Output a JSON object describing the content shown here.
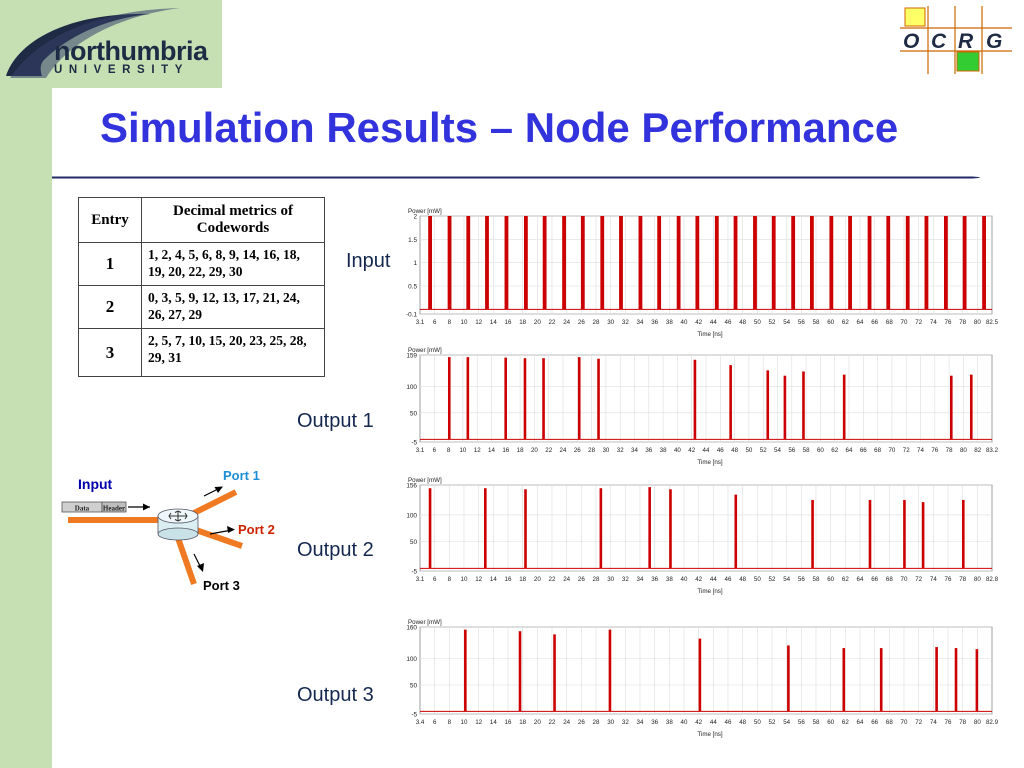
{
  "header": {
    "university_name": "northumbria",
    "university_sub": "UNIVERSITY",
    "group_logo_letters": [
      "O",
      "C",
      "R",
      "G"
    ]
  },
  "title": "Simulation Results – Node Performance",
  "table": {
    "headers": [
      "Entry",
      "Decimal metrics of Codewords"
    ],
    "rows": [
      {
        "entry": "1",
        "codes": "1, 2, 4, 5, 6, 8, 9, 14, 16, 18, 19, 20, 22, 29, 30"
      },
      {
        "entry": "2",
        "codes": "0, 3, 5, 9, 12, 13, 17, 21, 24, 26, 27, 29"
      },
      {
        "entry": "3",
        "codes": "2, 5, 7, 10, 15, 20, 23, 25, 28, 29, 31"
      }
    ]
  },
  "row_labels": [
    "Input",
    "Output 1",
    "Output 2",
    "Output 3"
  ],
  "diagram": {
    "input_label": "Input",
    "packet_fields": [
      "Data",
      "Header"
    ],
    "ports": [
      "Port 1",
      "Port 2",
      "Port 3"
    ],
    "colors": {
      "link": "#f07a22",
      "port1": "#1e8fd6",
      "port2": "#cc2200",
      "port3": "#000000",
      "input": "#0000aa"
    }
  },
  "colors": {
    "title": "#3333dd",
    "trace": "#cc0000",
    "band": "#c6e0b4"
  },
  "chart_data": [
    {
      "type": "line",
      "name": "Input",
      "ylabel": "Power [mW]",
      "xlabel": "Time [ns]",
      "xlim": [
        3.1,
        82.5
      ],
      "ylim": [
        -0.1,
        2
      ],
      "yticks": [
        -0.1,
        0.5,
        1,
        1.5,
        2
      ],
      "ytick_labels": [
        "-0.1",
        "0.5",
        "1",
        "1.5",
        "2"
      ],
      "xtick_labels": [
        "3.1",
        "6",
        "8",
        "10",
        "12",
        "14",
        "16",
        "18",
        "20",
        "22",
        "24",
        "26",
        "28",
        "30",
        "32",
        "34",
        "36",
        "38",
        "40",
        "42",
        "44",
        "46",
        "48",
        "50",
        "52",
        "54",
        "56",
        "58",
        "60",
        "62",
        "64",
        "66",
        "68",
        "70",
        "72",
        "74",
        "76",
        "78",
        "80",
        "82.5"
      ],
      "pulse_times": [
        4.5,
        7.2,
        9.8,
        12.4,
        15.1,
        17.8,
        20.4,
        23.1,
        25.7,
        28.4,
        31.0,
        33.7,
        36.3,
        39.0,
        41.6,
        44.3,
        46.9,
        49.6,
        52.2,
        54.9,
        57.5,
        60.2,
        62.8,
        65.5,
        68.1,
        70.8,
        73.4,
        76.1,
        78.7,
        81.4
      ],
      "pulse_peaks": [
        2,
        2,
        2,
        2,
        2,
        2,
        2,
        2,
        2,
        2,
        2,
        2,
        2,
        2,
        2,
        2,
        2,
        2,
        2,
        2,
        2,
        2,
        2,
        2,
        2,
        2,
        2,
        2,
        2,
        2
      ]
    },
    {
      "type": "line",
      "name": "Output 1",
      "ylabel": "Power [mW]",
      "xlabel": "Time [ns]",
      "xlim": [
        3.1,
        83.2
      ],
      "ylim": [
        -5,
        159
      ],
      "yticks": [
        -5,
        50,
        100,
        159
      ],
      "ytick_labels": [
        "-5",
        "50",
        "100",
        "159"
      ],
      "xtick_labels": [
        "3.1",
        "6",
        "8",
        "10",
        "12",
        "14",
        "16",
        "18",
        "20",
        "22",
        "24",
        "26",
        "28",
        "30",
        "32",
        "34",
        "36",
        "38",
        "40",
        "42",
        "44",
        "46",
        "48",
        "50",
        "52",
        "54",
        "56",
        "58",
        "60",
        "62",
        "64",
        "66",
        "68",
        "70",
        "72",
        "74",
        "76",
        "78",
        "80",
        "82",
        "83.2"
      ],
      "pulse_times": [
        7.2,
        9.8,
        15.1,
        17.8,
        20.4,
        25.4,
        28.1,
        41.6,
        46.6,
        51.8,
        54.2,
        56.8,
        62.5,
        77.5,
        80.3
      ],
      "pulse_peaks": [
        155,
        155,
        154,
        153,
        153,
        155,
        152,
        150,
        140,
        130,
        120,
        128,
        122,
        120,
        122
      ]
    },
    {
      "type": "line",
      "name": "Output 2",
      "ylabel": "Power [mW]",
      "xlabel": "Time [ns]",
      "xlim": [
        3.1,
        82.8
      ],
      "ylim": [
        -5,
        156
      ],
      "yticks": [
        -5,
        50,
        100,
        156
      ],
      "ytick_labels": [
        "-5",
        "50",
        "100",
        "156"
      ],
      "xtick_labels": [
        "3.1",
        "6",
        "8",
        "10",
        "12",
        "14",
        "16",
        "18",
        "20",
        "22",
        "24",
        "26",
        "28",
        "30",
        "32",
        "34",
        "36",
        "38",
        "40",
        "42",
        "44",
        "46",
        "48",
        "50",
        "52",
        "54",
        "56",
        "58",
        "60",
        "62",
        "64",
        "66",
        "68",
        "70",
        "72",
        "74",
        "76",
        "78",
        "80",
        "82.8"
      ],
      "pulse_times": [
        4.5,
        12.2,
        17.8,
        28.3,
        35.1,
        38.0,
        47.1,
        57.8,
        65.8,
        70.6,
        73.2,
        78.8
      ],
      "pulse_peaks": [
        150,
        150,
        148,
        150,
        152,
        148,
        138,
        128,
        128,
        128,
        124,
        128
      ]
    },
    {
      "type": "line",
      "name": "Output 3",
      "ylabel": "Power [mW]",
      "xlabel": "Time [ns]",
      "xlim": [
        3.4,
        82.9
      ],
      "ylim": [
        -5,
        160
      ],
      "yticks": [
        -5,
        50,
        100,
        160
      ],
      "ytick_labels": [
        "-5",
        "50",
        "100",
        "160"
      ],
      "xtick_labels": [
        "3.4",
        "6",
        "8",
        "10",
        "12",
        "14",
        "16",
        "18",
        "20",
        "22",
        "24",
        "26",
        "28",
        "30",
        "32",
        "34",
        "36",
        "38",
        "40",
        "42",
        "44",
        "46",
        "48",
        "50",
        "52",
        "54",
        "56",
        "58",
        "60",
        "62",
        "64",
        "66",
        "68",
        "70",
        "72",
        "74",
        "76",
        "78",
        "80",
        "82.9"
      ],
      "pulse_times": [
        9.7,
        17.3,
        22.1,
        29.8,
        42.3,
        54.6,
        62.3,
        67.5,
        75.2,
        77.9,
        80.8
      ],
      "pulse_peaks": [
        155,
        152,
        146,
        155,
        138,
        125,
        120,
        120,
        122,
        120,
        118
      ]
    }
  ]
}
